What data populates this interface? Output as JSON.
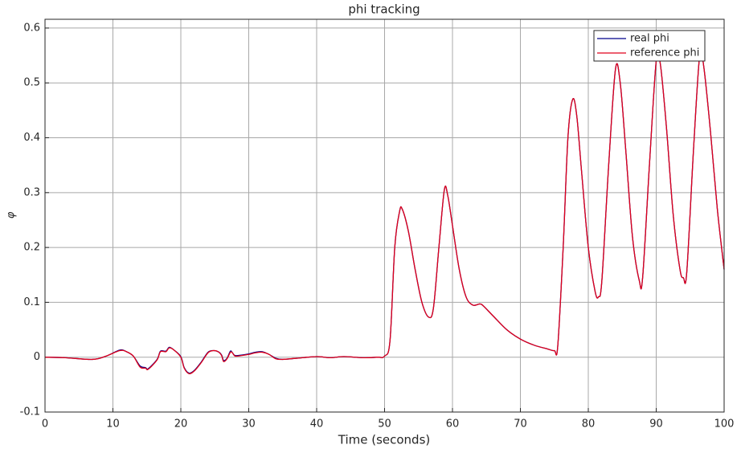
{
  "chart_data": {
    "type": "line",
    "title": "phi tracking",
    "x_label": "Time (seconds)",
    "y_label": "φ",
    "xlim": [
      0,
      100
    ],
    "ylim": [
      -0.1,
      0.616
    ],
    "xticks": [
      0,
      10,
      20,
      30,
      40,
      50,
      60,
      70,
      80,
      90,
      100
    ],
    "yticks": [
      -0.1,
      0,
      0.1,
      0.2,
      0.3,
      0.4,
      0.5,
      0.6
    ],
    "grid": true,
    "legend_position": "northeast",
    "x": [
      0,
      3,
      7,
      9,
      11,
      12,
      13,
      14,
      14.8,
      15.2,
      16.5,
      17,
      17.8,
      18.3,
      19,
      20,
      20.5,
      21.2,
      22,
      23,
      24,
      24.8,
      25.5,
      26,
      26.3,
      26.8,
      27.3,
      27.6,
      28,
      29,
      30,
      31,
      32,
      33,
      34,
      35,
      37,
      40,
      42,
      44,
      47,
      49,
      50,
      50.8,
      51.5,
      52.2,
      52.6,
      53.5,
      54.5,
      55.5,
      56.5,
      57.2,
      58,
      58.8,
      59.3,
      60,
      61,
      62,
      63,
      64,
      64.5,
      66,
      68,
      70,
      72,
      74,
      75,
      75.5,
      76.3,
      77,
      77.7,
      78.3,
      79,
      80,
      81,
      81.5,
      82,
      83,
      84,
      84.7,
      85.5,
      86.5,
      87.5,
      88,
      89,
      90,
      90.6,
      91.5,
      92.5,
      93.5,
      94,
      94.5,
      95.5,
      96.4,
      97,
      98,
      99,
      100
    ],
    "series": [
      {
        "name": "real phi",
        "color": "#00008b",
        "values": [
          0,
          -0.001,
          -0.004,
          0.002,
          0.013,
          0.01,
          0.002,
          -0.016,
          -0.019,
          -0.021,
          -0.004,
          0.011,
          0.011,
          0.018,
          0.013,
          0.001,
          -0.019,
          -0.029,
          -0.024,
          -0.009,
          0.009,
          0.012,
          0.01,
          0.004,
          -0.006,
          -0.002,
          0.011,
          0.008,
          0.003,
          0.004,
          0.006,
          0.009,
          0.01,
          0.005,
          -0.002,
          -0.004,
          -0.002,
          0.001,
          -0.001,
          0.001,
          -0.001,
          0,
          0.002,
          0.03,
          0.2,
          0.265,
          0.27,
          0.23,
          0.16,
          0.1,
          0.073,
          0.09,
          0.2,
          0.305,
          0.295,
          0.24,
          0.16,
          0.11,
          0.095,
          0.097,
          0.094,
          0.075,
          0.05,
          0.033,
          0.022,
          0.015,
          0.012,
          0.02,
          0.2,
          0.4,
          0.47,
          0.44,
          0.34,
          0.2,
          0.12,
          0.11,
          0.14,
          0.35,
          0.525,
          0.5,
          0.38,
          0.22,
          0.14,
          0.145,
          0.35,
          0.54,
          0.535,
          0.42,
          0.26,
          0.16,
          0.145,
          0.155,
          0.38,
          0.55,
          0.53,
          0.41,
          0.27,
          0.16
        ]
      },
      {
        "name": "reference phi",
        "color": "#e0001a",
        "values": [
          0,
          -0.001,
          -0.004,
          0.002,
          0.012,
          0.01,
          0.002,
          -0.018,
          -0.02,
          -0.022,
          -0.005,
          0.01,
          0.01,
          0.017,
          0.013,
          0,
          -0.02,
          -0.03,
          -0.025,
          -0.01,
          0.008,
          0.012,
          0.01,
          0.003,
          -0.008,
          -0.003,
          0.009,
          0.008,
          0.002,
          0.003,
          0.005,
          0.008,
          0.009,
          0.005,
          -0.003,
          -0.004,
          -0.002,
          0.001,
          -0.001,
          0.001,
          -0.001,
          0,
          0.002,
          0.03,
          0.2,
          0.265,
          0.27,
          0.23,
          0.16,
          0.1,
          0.073,
          0.09,
          0.2,
          0.305,
          0.295,
          0.24,
          0.16,
          0.11,
          0.095,
          0.097,
          0.094,
          0.075,
          0.05,
          0.033,
          0.022,
          0.015,
          0.012,
          0.02,
          0.2,
          0.4,
          0.47,
          0.44,
          0.34,
          0.2,
          0.12,
          0.11,
          0.14,
          0.35,
          0.525,
          0.5,
          0.38,
          0.22,
          0.14,
          0.145,
          0.35,
          0.54,
          0.535,
          0.42,
          0.26,
          0.16,
          0.145,
          0.155,
          0.38,
          0.55,
          0.53,
          0.41,
          0.27,
          0.16
        ]
      }
    ]
  }
}
